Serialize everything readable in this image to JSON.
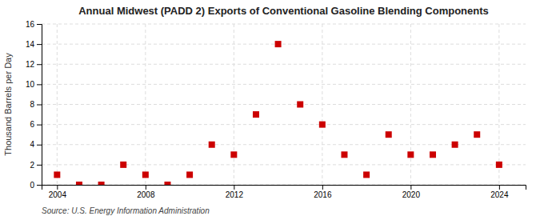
{
  "chart_data": {
    "type": "scatter",
    "title": "Annual Midwest (PADD 2) Exports of Conventional Gasoline Blending Components",
    "y_label": "Thousand Barrels per Day",
    "annotations": [
      "Source: U.S. Energy Information Administration"
    ],
    "x": [
      2004,
      2005,
      2006,
      2007,
      2008,
      2009,
      2010,
      2011,
      2012,
      2013,
      2014,
      2015,
      2016,
      2017,
      2018,
      2019,
      2020,
      2021,
      2022,
      2023,
      2024
    ],
    "values": [
      1,
      0,
      0,
      2,
      1,
      0,
      1,
      4,
      3,
      7,
      14,
      8,
      6,
      3,
      1,
      5,
      3,
      3,
      4,
      5,
      2
    ],
    "color": "#cc0000",
    "marker": "square",
    "xlim": [
      2003.3,
      2025.2
    ],
    "ylim": [
      0,
      16
    ],
    "xticks": [
      2004,
      2008,
      2012,
      2016,
      2020,
      2024
    ],
    "yticks": [
      0,
      2,
      4,
      6,
      8,
      10,
      12,
      14,
      16
    ],
    "grid": true
  }
}
